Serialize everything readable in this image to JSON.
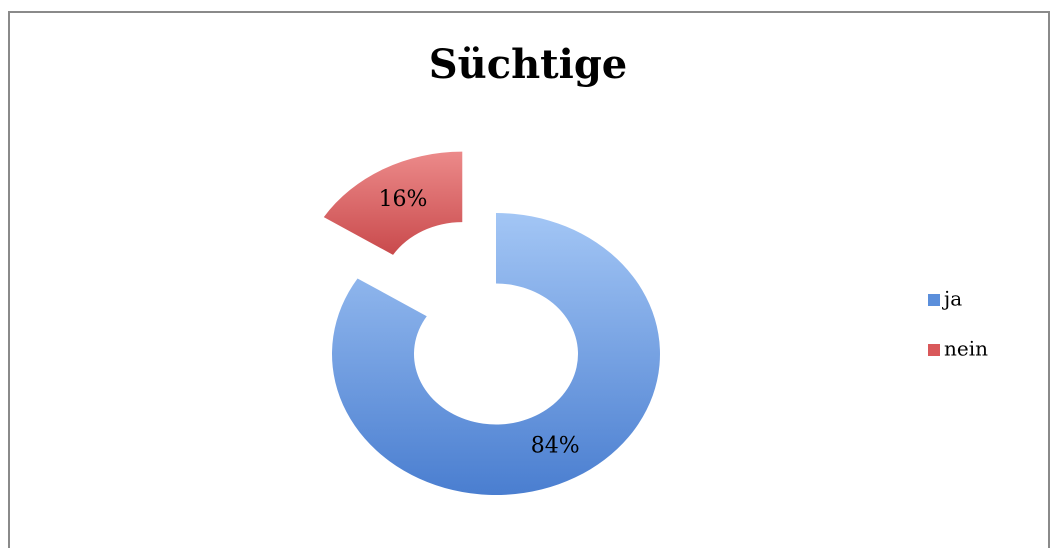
{
  "chart_data": {
    "type": "donut",
    "title": "Süchtige",
    "categories": [
      "ja",
      "nein"
    ],
    "values": [
      84,
      16
    ],
    "value_labels": [
      "84%",
      "16%"
    ],
    "colors": [
      "#5b8fdb",
      "#d9585a"
    ],
    "legend": "right"
  }
}
